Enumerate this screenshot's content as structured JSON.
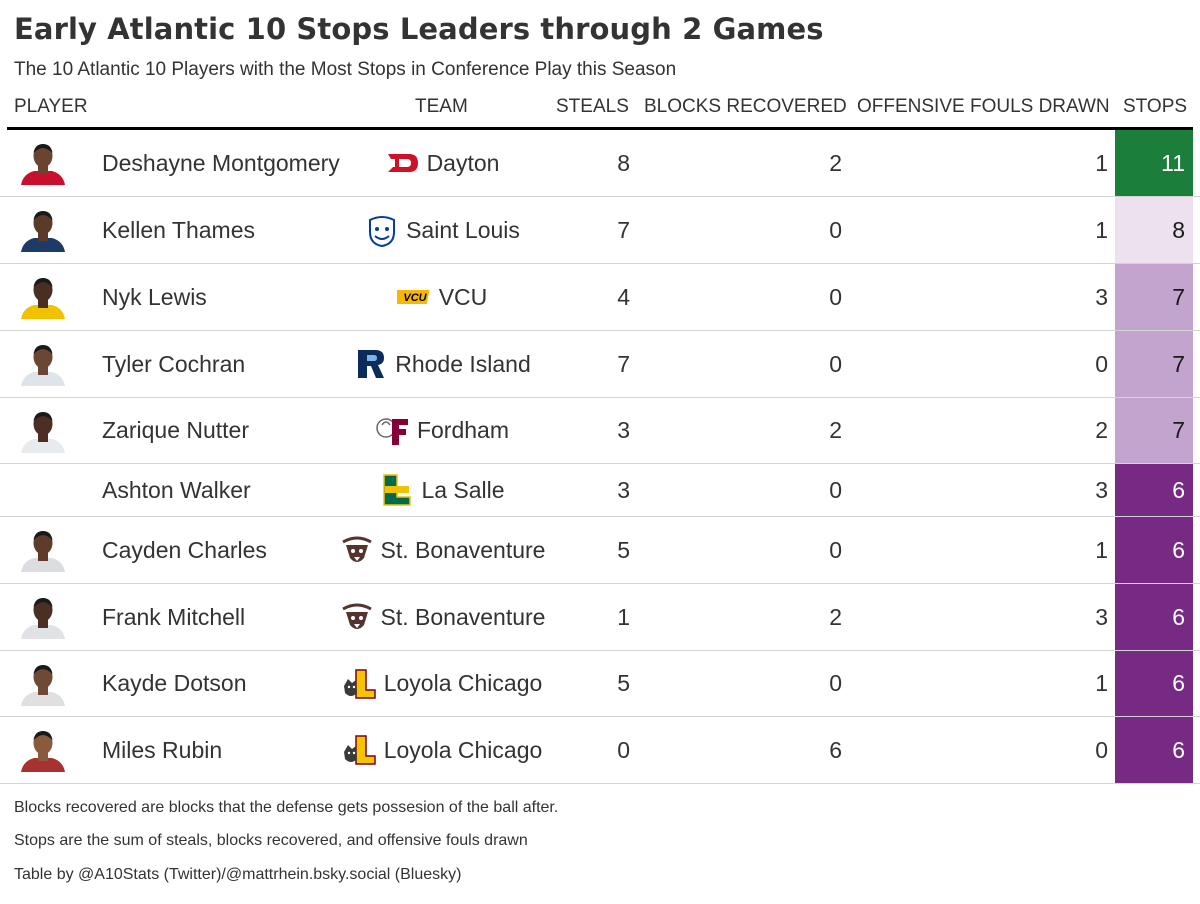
{
  "header": {
    "title": "Early Atlantic 10 Stops Leaders through 2 Games",
    "subtitle": "The 10 Atlantic 10 Players with the Most Stops in Conference Play this Season"
  },
  "columns": {
    "player": "PLAYER",
    "team": "TEAM",
    "steals": "STEALS",
    "blocks": "BLOCKS RECOVERED",
    "fouls": "OFFENSIVE FOULS DRAWN",
    "stops": "STOPS"
  },
  "footer": {
    "note1": "Blocks recovered are blocks that the defense gets possesion of the ball after.",
    "note2": "Stops are the sum of steals, blocks recovered, and offensive fouls drawn",
    "credit": "Table by @A10Stats (Twitter)/@mattrhein.bsky.social (Bluesky)"
  },
  "colors": {
    "stops_scale": {
      "11": "#1b7f3b",
      "8": "#ede1ef",
      "7": "#c2a4cf",
      "6": "#762a83"
    },
    "stops_text_dark": "#1a1a1a",
    "stops_text_light": "#ffffff"
  },
  "chart_data": {
    "type": "table",
    "title": "Early Atlantic 10 Stops Leaders through 2 Games",
    "subtitle": "The 10 Atlantic 10 Players with the Most Stops in Conference Play this Season",
    "columns": [
      "PLAYER",
      "TEAM",
      "STEALS",
      "BLOCKS RECOVERED",
      "OFFENSIVE FOULS DRAWN",
      "STOPS"
    ],
    "rows": [
      {
        "player": "Deshayne Montgomery",
        "team": "Dayton",
        "team_logo": "dayton-logo",
        "headshot": true,
        "steals": 8,
        "blocks": 2,
        "fouls": 1,
        "stops": 11
      },
      {
        "player": "Kellen Thames",
        "team": "Saint Louis",
        "team_logo": "billiken-logo",
        "headshot": true,
        "steals": 7,
        "blocks": 0,
        "fouls": 1,
        "stops": 8
      },
      {
        "player": "Nyk Lewis",
        "team": "VCU",
        "team_logo": "vcu-logo",
        "headshot": true,
        "steals": 4,
        "blocks": 0,
        "fouls": 3,
        "stops": 7
      },
      {
        "player": "Tyler Cochran",
        "team": "Rhode Island",
        "team_logo": "ri-logo",
        "headshot": true,
        "steals": 7,
        "blocks": 0,
        "fouls": 0,
        "stops": 7
      },
      {
        "player": "Zarique Nutter",
        "team": "Fordham",
        "team_logo": "fordham-logo",
        "headshot": true,
        "steals": 3,
        "blocks": 2,
        "fouls": 2,
        "stops": 7
      },
      {
        "player": "Ashton Walker",
        "team": "La Salle",
        "team_logo": "lasalle-logo",
        "headshot": false,
        "steals": 3,
        "blocks": 0,
        "fouls": 3,
        "stops": 6
      },
      {
        "player": "Cayden Charles",
        "team": "St. Bonaventure",
        "team_logo": "bonnies-logo",
        "headshot": true,
        "steals": 5,
        "blocks": 0,
        "fouls": 1,
        "stops": 6
      },
      {
        "player": "Frank Mitchell",
        "team": "St. Bonaventure",
        "team_logo": "bonnies-logo",
        "headshot": true,
        "steals": 1,
        "blocks": 2,
        "fouls": 3,
        "stops": 6
      },
      {
        "player": "Kayde Dotson",
        "team": "Loyola Chicago",
        "team_logo": "loyola-logo",
        "headshot": true,
        "steals": 5,
        "blocks": 0,
        "fouls": 1,
        "stops": 6
      },
      {
        "player": "Miles Rubin",
        "team": "Loyola Chicago",
        "team_logo": "loyola-logo",
        "headshot": true,
        "steals": 0,
        "blocks": 6,
        "fouls": 0,
        "stops": 6
      }
    ]
  }
}
